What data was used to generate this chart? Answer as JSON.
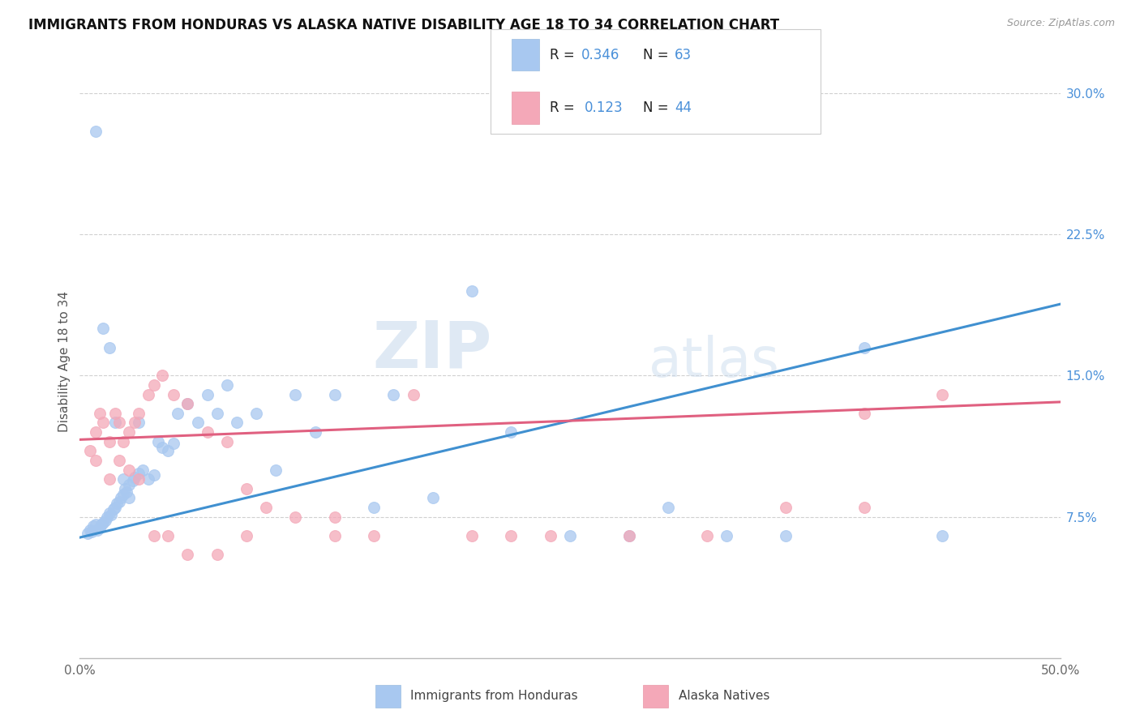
{
  "title": "IMMIGRANTS FROM HONDURAS VS ALASKA NATIVE DISABILITY AGE 18 TO 34 CORRELATION CHART",
  "source": "Source: ZipAtlas.com",
  "ylabel": "Disability Age 18 to 34",
  "xlim": [
    0.0,
    0.5
  ],
  "ylim": [
    0.0,
    0.315
  ],
  "xticks": [
    0.0,
    0.1,
    0.2,
    0.3,
    0.4,
    0.5
  ],
  "xticklabels": [
    "0.0%",
    "",
    "",
    "",
    "",
    "50.0%"
  ],
  "yticks": [
    0.075,
    0.15,
    0.225,
    0.3
  ],
  "yticklabels": [
    "7.5%",
    "15.0%",
    "22.5%",
    "30.0%"
  ],
  "legend_r1": "0.346",
  "legend_n1": "63",
  "legend_r2": "0.123",
  "legend_n2": "44",
  "color_blue": "#A8C8F0",
  "color_pink": "#F4A8B8",
  "line_blue": "#4090D0",
  "line_pink": "#E06080",
  "watermark_zip": "ZIP",
  "watermark_atlas": "atlas",
  "background_color": "#ffffff",
  "grid_color": "#d0d0d0",
  "blue_x": [
    0.004,
    0.005,
    0.006,
    0.007,
    0.008,
    0.009,
    0.01,
    0.011,
    0.012,
    0.013,
    0.014,
    0.015,
    0.016,
    0.017,
    0.018,
    0.019,
    0.02,
    0.021,
    0.022,
    0.023,
    0.024,
    0.025,
    0.027,
    0.028,
    0.03,
    0.032,
    0.035,
    0.038,
    0.04,
    0.042,
    0.045,
    0.048,
    0.05,
    0.055,
    0.06,
    0.065,
    0.07,
    0.075,
    0.08,
    0.09,
    0.1,
    0.11,
    0.12,
    0.13,
    0.15,
    0.16,
    0.18,
    0.2,
    0.22,
    0.25,
    0.28,
    0.3,
    0.33,
    0.36,
    0.4,
    0.44,
    0.008,
    0.012,
    0.015,
    0.018,
    0.022,
    0.025,
    0.03
  ],
  "blue_y": [
    0.066,
    0.068,
    0.067,
    0.07,
    0.071,
    0.068,
    0.069,
    0.071,
    0.072,
    0.073,
    0.075,
    0.077,
    0.076,
    0.079,
    0.08,
    0.082,
    0.083,
    0.085,
    0.087,
    0.09,
    0.088,
    0.092,
    0.094,
    0.096,
    0.098,
    0.1,
    0.095,
    0.097,
    0.115,
    0.112,
    0.11,
    0.114,
    0.13,
    0.135,
    0.125,
    0.14,
    0.13,
    0.145,
    0.125,
    0.13,
    0.1,
    0.14,
    0.12,
    0.14,
    0.08,
    0.14,
    0.085,
    0.195,
    0.12,
    0.065,
    0.065,
    0.08,
    0.065,
    0.065,
    0.165,
    0.065,
    0.28,
    0.175,
    0.165,
    0.125,
    0.095,
    0.085,
    0.125
  ],
  "pink_x": [
    0.005,
    0.008,
    0.01,
    0.012,
    0.015,
    0.018,
    0.02,
    0.022,
    0.025,
    0.028,
    0.03,
    0.035,
    0.038,
    0.042,
    0.048,
    0.055,
    0.065,
    0.075,
    0.085,
    0.095,
    0.11,
    0.13,
    0.15,
    0.17,
    0.2,
    0.24,
    0.28,
    0.32,
    0.36,
    0.4,
    0.44,
    0.008,
    0.015,
    0.02,
    0.025,
    0.03,
    0.038,
    0.045,
    0.055,
    0.07,
    0.085,
    0.13,
    0.22,
    0.4
  ],
  "pink_y": [
    0.11,
    0.12,
    0.13,
    0.125,
    0.115,
    0.13,
    0.125,
    0.115,
    0.12,
    0.125,
    0.13,
    0.14,
    0.145,
    0.15,
    0.14,
    0.135,
    0.12,
    0.115,
    0.09,
    0.08,
    0.075,
    0.075,
    0.065,
    0.14,
    0.065,
    0.065,
    0.065,
    0.065,
    0.08,
    0.08,
    0.14,
    0.105,
    0.095,
    0.105,
    0.1,
    0.095,
    0.065,
    0.065,
    0.055,
    0.055,
    0.065,
    0.065,
    0.065,
    0.13
  ]
}
